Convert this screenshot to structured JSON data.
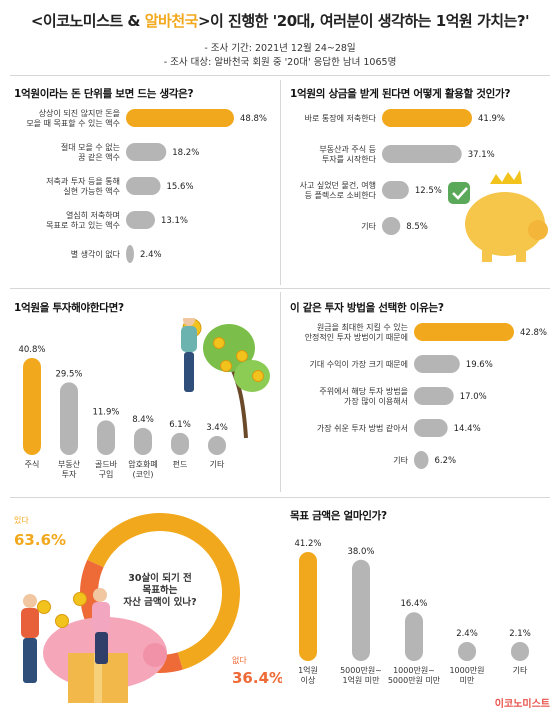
{
  "header": {
    "title_pre": "<이코노미스트 & ",
    "title_brand": "알바천국",
    "title_post": ">이 진행한 '20대, 여러분이 생각하는 1억원 가치는?'",
    "period": "- 조사 기간: 2021년 12월 24~28일",
    "target": "- 조사 대상: 알바천국 회원 중 '20대' 응답한 남녀 1065명"
  },
  "colors": {
    "highlight": "#f2a81d",
    "bar": "#b5b5b5",
    "donut_yes": "#f2a81d",
    "donut_no": "#ee6a36",
    "accent_text": "#f2a81d",
    "no_text": "#ee6a36"
  },
  "chart_data": [
    {
      "type": "bar",
      "orientation": "horizontal",
      "title": "1억원이라는 돈 단위를 보면 드는 생각은?",
      "categories": [
        "상상이 되진 않지만 돈을\n모을 때 목표할 수 있는 액수",
        "절대 모을 수 없는\n꿈 같은 액수",
        "저축과 투자 등을 통해\n실현 가능한 액수",
        "열심히 저축하며\n목표로 하고 있는 액수",
        "별 생각이 없다"
      ],
      "values": [
        48.8,
        18.2,
        15.6,
        13.1,
        2.4
      ],
      "labels": [
        "48.8%",
        "18.2%",
        "15.6%",
        "13.1%",
        "2.4%"
      ],
      "highlight_index": 0
    },
    {
      "type": "bar",
      "orientation": "horizontal",
      "title": "1억원의 상금을 받게 된다면 어떻게 활용할 것인가?",
      "categories": [
        "바로 통장에 저축한다",
        "부동산과 주식 등\n투자를 시작한다",
        "사고 싶었던 물건, 여행\n등 플렉스로 소비한다",
        "기타"
      ],
      "values": [
        41.9,
        37.1,
        12.5,
        8.5
      ],
      "labels": [
        "41.9%",
        "37.1%",
        "12.5%",
        "8.5%"
      ],
      "highlight_index": 0
    },
    {
      "type": "bar",
      "orientation": "vertical",
      "title": "1억원을 투자해야한다면?",
      "categories": [
        "주식",
        "부동산\n투자",
        "골드바\n구입",
        "암호화폐\n(코인)",
        "펀드",
        "기타"
      ],
      "values": [
        40.8,
        29.5,
        11.9,
        8.4,
        6.1,
        3.4
      ],
      "labels": [
        "40.8%",
        "29.5%",
        "11.9%",
        "8.4%",
        "6.1%",
        "3.4%"
      ],
      "highlight_index": 0
    },
    {
      "type": "bar",
      "orientation": "horizontal",
      "title": "이 같은 투자 방법을 선택한 이유는?",
      "categories": [
        "원금을 최대한 지킬 수 있는\n안정적인 투자 방법이기 때문에",
        "기대 수익이 가장 크기 때문에",
        "주위에서 해당 투자 방법을\n가장 많이 이용해서",
        "가장 쉬운 투자 방법 같아서",
        "기타"
      ],
      "values": [
        42.8,
        19.6,
        17.0,
        14.4,
        6.2
      ],
      "labels": [
        "42.8%",
        "19.6%",
        "17.0%",
        "14.4%",
        "6.2%"
      ],
      "highlight_index": 0
    },
    {
      "type": "pie",
      "title": "30살이 되기 전\n목표하는\n자산 금액이 있나?",
      "categories": [
        "있다",
        "없다"
      ],
      "values": [
        63.6,
        36.4
      ],
      "labels": [
        "63.6%",
        "36.4%"
      ]
    },
    {
      "type": "bar",
      "orientation": "vertical",
      "title": "목표 금액은 얼마인가?",
      "categories": [
        "1억원\n이상",
        "5000만원~\n1억원 미만",
        "1000만원~\n5000만원 미만",
        "1000만원\n미만",
        "기타"
      ],
      "values": [
        41.2,
        38.0,
        16.4,
        2.4,
        2.1
      ],
      "labels": [
        "41.2%",
        "38.0%",
        "16.4%",
        "2.4%",
        "2.1%"
      ],
      "highlight_index": 0
    }
  ],
  "footer": {
    "logo": "이코노미스트"
  },
  "icons": [
    "piggy-bank-icon",
    "money-tree-icon",
    "piggy-bank-icon",
    "coin-icon",
    "person-icon",
    "crown-icon",
    "checkmark-icon"
  ]
}
